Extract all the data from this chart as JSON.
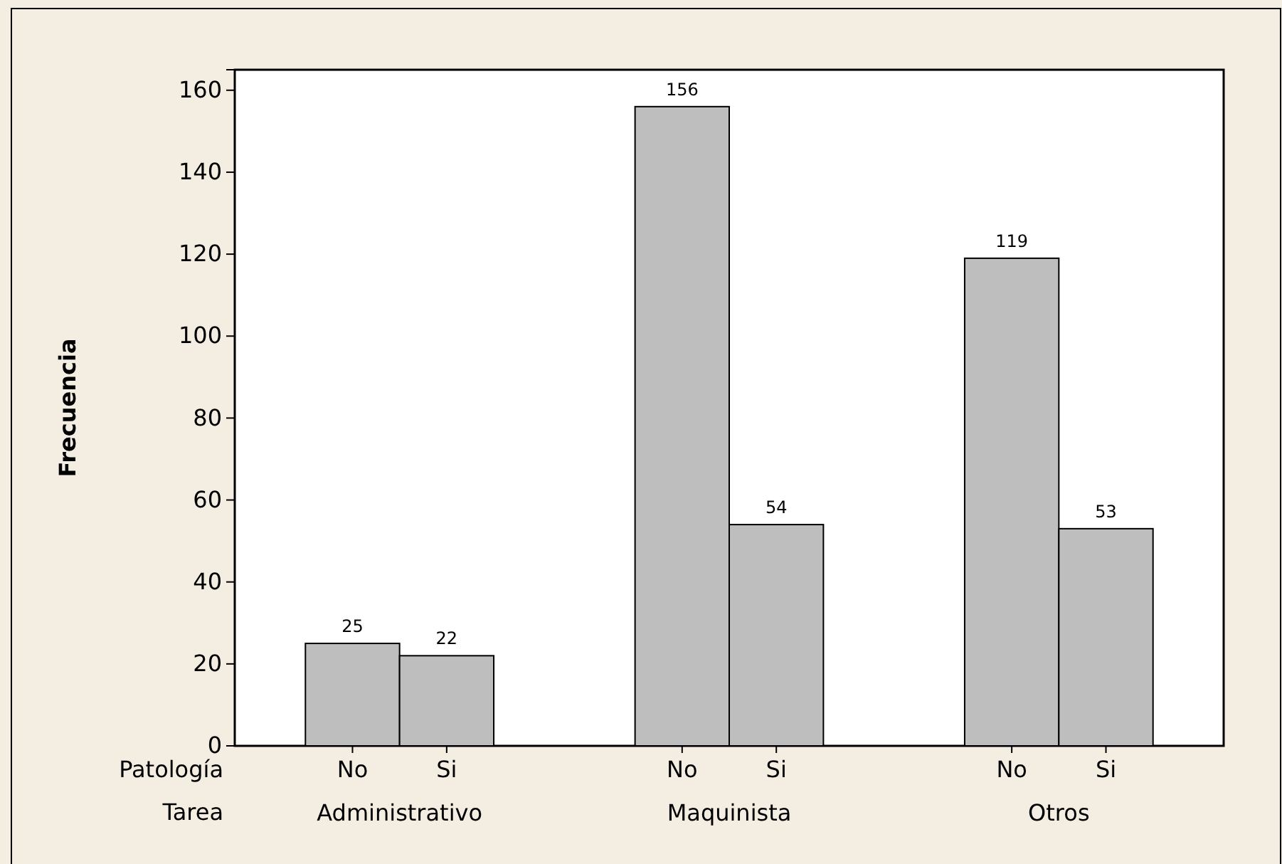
{
  "chart_data": {
    "type": "bar",
    "ylabel": "Frecuencia",
    "xlabel": "Tarea",
    "legend_title": "Patología",
    "categories": [
      "Administrativo",
      "Maquinista",
      "Otros"
    ],
    "series": [
      {
        "name": "No",
        "color": "#bebebe",
        "values": [
          25,
          156,
          119
        ]
      },
      {
        "name": "Si",
        "color": "#bebebe",
        "values": [
          22,
          54,
          53
        ]
      }
    ],
    "ylim": [
      0,
      165
    ],
    "yticks": [
      0,
      20,
      40,
      60,
      80,
      100,
      120,
      140,
      160
    ],
    "grid": false,
    "data_labels": true
  }
}
